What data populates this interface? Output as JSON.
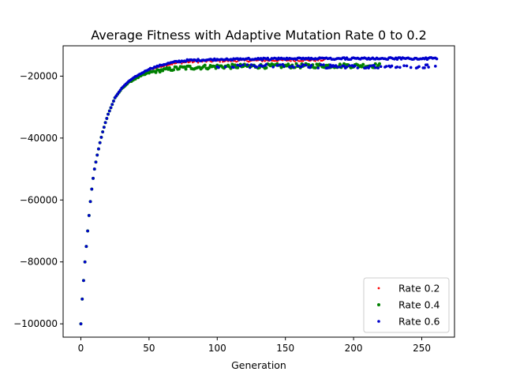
{
  "chart_data": {
    "type": "scatter",
    "title": "Average Fitness with Adaptive Mutation Rate 0 to 0.2",
    "xlabel": "Generation",
    "ylabel": "",
    "xlim": [
      -13,
      274
    ],
    "ylim": [
      -104300,
      -10200
    ],
    "xticks": [
      0,
      50,
      100,
      150,
      200,
      250
    ],
    "yticks": [
      -100000,
      -80000,
      -60000,
      -40000,
      -20000
    ],
    "grid": false,
    "legend_position": "lower-right",
    "curve_anchors": [
      [
        0,
        -100000
      ],
      [
        1,
        -92000
      ],
      [
        2,
        -86000
      ],
      [
        3,
        -80000
      ],
      [
        4,
        -75000
      ],
      [
        5,
        -70000
      ],
      [
        6,
        -65000
      ],
      [
        7,
        -60500
      ],
      [
        8,
        -56500
      ],
      [
        9,
        -53000
      ],
      [
        10,
        -50000
      ],
      [
        12,
        -45500
      ],
      [
        14,
        -41500
      ],
      [
        16,
        -38000
      ],
      [
        18,
        -35000
      ],
      [
        20,
        -32300
      ],
      [
        25,
        -27000
      ],
      [
        30,
        -24000
      ],
      [
        35,
        -22000
      ],
      [
        40,
        -20700
      ],
      [
        50,
        -18700
      ],
      [
        60,
        -17800
      ],
      [
        70,
        -17200
      ],
      [
        80,
        -16900
      ],
      [
        100,
        -16600
      ],
      [
        150,
        -16400
      ],
      [
        200,
        -16300
      ],
      [
        265,
        -16300
      ]
    ],
    "series": [
      {
        "name": "Rate 0.2",
        "color": "#ff0000",
        "marker_size": 1.2,
        "n_generations": 180,
        "plateau_x": 40,
        "plateau_value": -14800,
        "noise": 350
      },
      {
        "name": "Rate 0.4",
        "color": "#008000",
        "marker_size": 2.0,
        "n_generations": 220,
        "plateau_x": 40,
        "plateau_value": -16600,
        "noise": 700
      },
      {
        "name": "Rate 0.6",
        "color": "#0000cc",
        "marker_size": 1.8,
        "n_generations": 262,
        "plateau_x": 40,
        "plateau_value": -14300,
        "noise": 300,
        "secondary_branch": {
          "from_x": 100,
          "plateau_value": -16800,
          "noise": 600
        }
      }
    ]
  }
}
